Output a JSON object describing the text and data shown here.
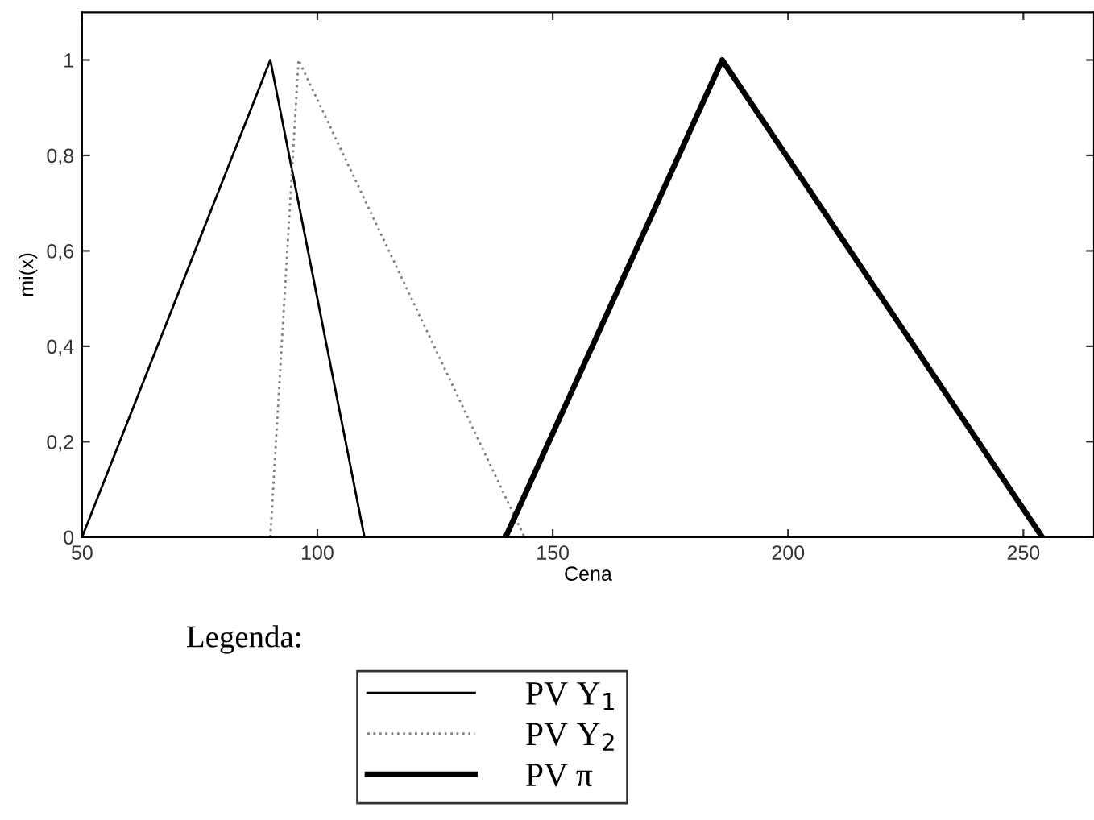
{
  "chart_data": {
    "type": "line",
    "xlabel": "Cena",
    "ylabel": "mi(x)",
    "legend_title": "Legenda:",
    "xlim": [
      50,
      265
    ],
    "ylim": [
      0,
      1.1
    ],
    "xticks": [
      50,
      100,
      150,
      200,
      250
    ],
    "yticks": [
      0,
      {
        "value": 0.2,
        "label": "0,2"
      },
      {
        "value": 0.4,
        "label": "0,4"
      },
      {
        "value": 0.6,
        "label": "0,6"
      },
      {
        "value": 0.8,
        "label": "0,8"
      },
      1
    ],
    "grid": false,
    "legend": "bottom",
    "marker": "none",
    "series": [
      {
        "name": "PV Y$_{1}$",
        "color": "#000000",
        "line_style": "solid",
        "x": [
          50,
          90,
          110
        ],
        "values": [
          0,
          1,
          0
        ]
      },
      {
        "name": "PV Y$_{2}$",
        "color": "#808080",
        "line_style": "dotted",
        "x": [
          90,
          96,
          144
        ],
        "values": [
          0,
          1,
          0
        ]
      },
      {
        "name": "PV π",
        "color": "#000000",
        "line_style": "solid",
        "x": [
          140,
          186,
          254
        ],
        "values": [
          0,
          1,
          0
        ]
      }
    ]
  }
}
